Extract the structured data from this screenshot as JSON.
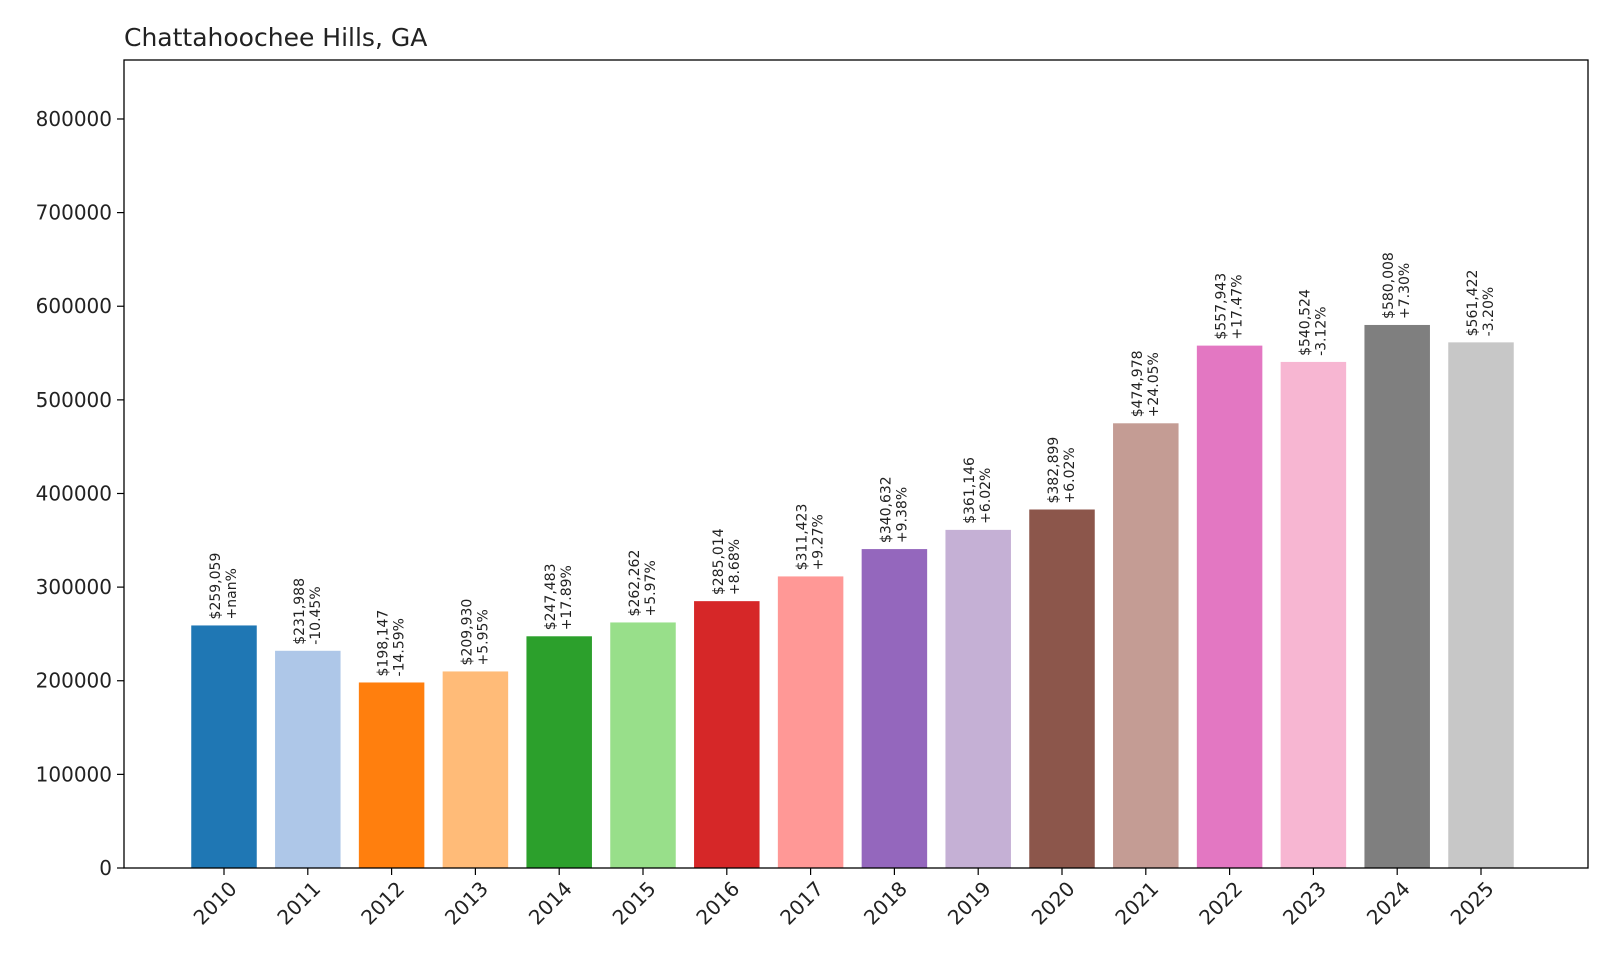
{
  "chart_data": {
    "type": "bar",
    "title": "Chattahoochee Hills, GA",
    "xlabel": "",
    "ylabel": "",
    "ylim": [
      0,
      863000
    ],
    "yticks": [
      0,
      100000,
      200000,
      300000,
      400000,
      500000,
      600000,
      700000,
      800000
    ],
    "ytick_labels": [
      "0",
      "100000",
      "200000",
      "300000",
      "400000",
      "500000",
      "600000",
      "700000",
      "800000"
    ],
    "grid": false,
    "legend": "none",
    "categories": [
      "2010",
      "2011",
      "2012",
      "2013",
      "2014",
      "2015",
      "2016",
      "2017",
      "2018",
      "2019",
      "2020",
      "2021",
      "2022",
      "2023",
      "2024",
      "2025"
    ],
    "values": [
      259059,
      231988,
      198147,
      209930,
      247483,
      262262,
      285014,
      311423,
      340632,
      361146,
      382899,
      474978,
      557943,
      540524,
      580008,
      561422
    ],
    "value_labels": [
      "$259,059",
      "$231,988",
      "$198,147",
      "$209,930",
      "$247,483",
      "$262,262",
      "$285,014",
      "$311,423",
      "$340,632",
      "$361,146",
      "$382,899",
      "$474,978",
      "$557,943",
      "$540,524",
      "$580,008",
      "$561,422"
    ],
    "change_labels": [
      "+nan%",
      "-10.45%",
      "-14.59%",
      "+5.95%",
      "+17.89%",
      "+5.97%",
      "+8.68%",
      "+9.27%",
      "+9.38%",
      "+6.02%",
      "+6.02%",
      "+24.05%",
      "+17.47%",
      "-3.12%",
      "+7.30%",
      "-3.20%"
    ],
    "colors": [
      "#1f77b4",
      "#aec7e8",
      "#ff7f0e",
      "#ffbb78",
      "#2ca02c",
      "#98df8a",
      "#d62728",
      "#ff9896",
      "#9467bd",
      "#c5b0d5",
      "#8c564b",
      "#c49c94",
      "#e377c2",
      "#f7b6d2",
      "#7f7f7f",
      "#c7c7c7"
    ]
  }
}
